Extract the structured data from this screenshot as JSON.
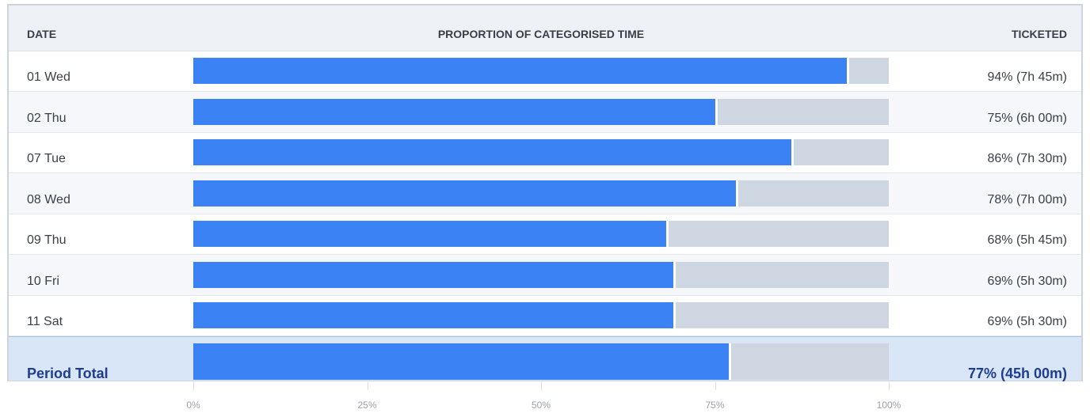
{
  "header": {
    "date": "DATE",
    "proportion": "PROPORTION OF CATEGORISED TIME",
    "ticketed": "TICKETED"
  },
  "chart_data": {
    "type": "bar",
    "orientation": "horizontal",
    "stacked_to": 100,
    "xlim": [
      0,
      100
    ],
    "x_ticks": [
      "0%",
      "25%",
      "50%",
      "75%",
      "100%"
    ],
    "categories": [
      "01 Wed",
      "02 Thu",
      "07 Tue",
      "08 Wed",
      "09 Thu",
      "10 Fri",
      "11 Sat"
    ],
    "values": [
      94,
      75,
      86,
      78,
      68,
      69,
      69
    ],
    "value_labels": [
      "94% (7h 45m)",
      "75% (6h 00m)",
      "86% (7h 30m)",
      "78% (7h 00m)",
      "68% (5h 45m)",
      "69% (5h 30m)",
      "69% (5h 30m)"
    ],
    "total": {
      "label": "Period Total",
      "value": 77,
      "value_label": "77% (45h 00m)"
    },
    "colors": {
      "filled": "#3b82f4",
      "remainder": "#cdd6e1"
    }
  }
}
